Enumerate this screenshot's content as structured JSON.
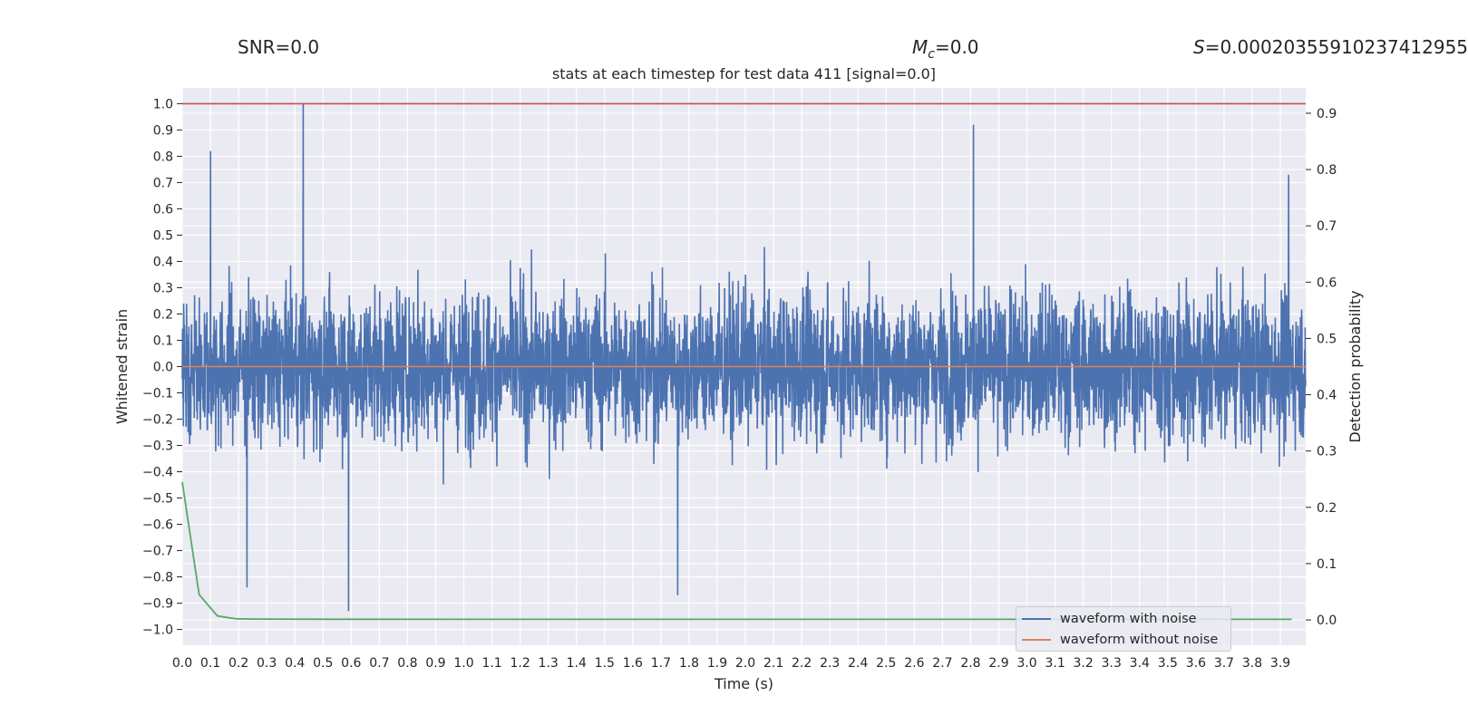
{
  "header": {
    "snr": "SNR=0.0",
    "mc_symbol": "M",
    "mc_sub": "c",
    "mc_value": "=0.0",
    "s_symbol": "S",
    "s_value": "=0.00020355910237412955"
  },
  "colors": {
    "noise": "#4c72b0",
    "clean": "#dd8452",
    "prob": "#55a868",
    "threshold": "#c44e52",
    "panel": "#eaeaf2",
    "grid": "#ffffff"
  },
  "chart_data": {
    "type": "line",
    "title": "stats at each timestep for test data 411 [signal=0.0]",
    "xlabel": "Time (s)",
    "ylabel": "Whitened strain",
    "ylabel_right": "Detection probability",
    "xlim": [
      0.0,
      3.99
    ],
    "ylim": [
      -1.06,
      1.06
    ],
    "ylim_right": [
      -0.045,
      0.945
    ],
    "x_ticks": [
      "0.0",
      "0.1",
      "0.2",
      "0.3",
      "0.4",
      "0.5",
      "0.6",
      "0.7",
      "0.8",
      "0.9",
      "1.0",
      "1.1",
      "1.2",
      "1.3",
      "1.4",
      "1.5",
      "1.6",
      "1.7",
      "1.8",
      "1.9",
      "2.0",
      "2.1",
      "2.2",
      "2.3",
      "2.4",
      "2.5",
      "2.6",
      "2.7",
      "2.8",
      "2.9",
      "3.0",
      "3.1",
      "3.2",
      "3.3",
      "3.4",
      "3.5",
      "3.6",
      "3.7",
      "3.8",
      "3.9"
    ],
    "y_ticks": [
      "1.0",
      "0.9",
      "0.8",
      "0.7",
      "0.6",
      "0.5",
      "0.4",
      "0.3",
      "0.2",
      "0.1",
      "0.0",
      "−0.1",
      "−0.2",
      "−0.3",
      "−0.4",
      "−0.5",
      "−0.6",
      "−0.7",
      "−0.8",
      "−0.9",
      "−1.0"
    ],
    "y_ticks_right": [
      "0.9",
      "0.8",
      "0.7",
      "0.6",
      "0.5",
      "0.4",
      "0.3",
      "0.2",
      "0.1",
      "0.0"
    ],
    "threshold": 1.0,
    "series": [
      {
        "name": "waveform with noise",
        "kind": "noise",
        "n_samples": 4096,
        "peaks": [
          {
            "t": 0.1,
            "v": 0.82
          },
          {
            "t": 0.43,
            "v": 1.0
          },
          {
            "t": 0.59,
            "v": -0.93
          },
          {
            "t": 1.76,
            "v": -0.87
          },
          {
            "t": 2.81,
            "v": 0.92
          },
          {
            "t": 3.93,
            "v": 0.73
          },
          {
            "t": 0.23,
            "v": -0.84
          }
        ]
      },
      {
        "name": "waveform without noise",
        "kind": "flat",
        "value": 0.0
      },
      {
        "name": "Detection probability",
        "kind": "prob",
        "x": [
          0.0,
          0.06,
          0.125,
          0.19,
          0.25,
          0.5,
          1.0,
          2.0,
          3.0,
          3.94
        ],
        "values": [
          0.245,
          0.045,
          0.007,
          0.002,
          0.0015,
          0.0012,
          0.001,
          0.001,
          0.001,
          0.001
        ]
      }
    ],
    "legend": [
      "waveform with noise",
      "waveform without noise"
    ]
  }
}
